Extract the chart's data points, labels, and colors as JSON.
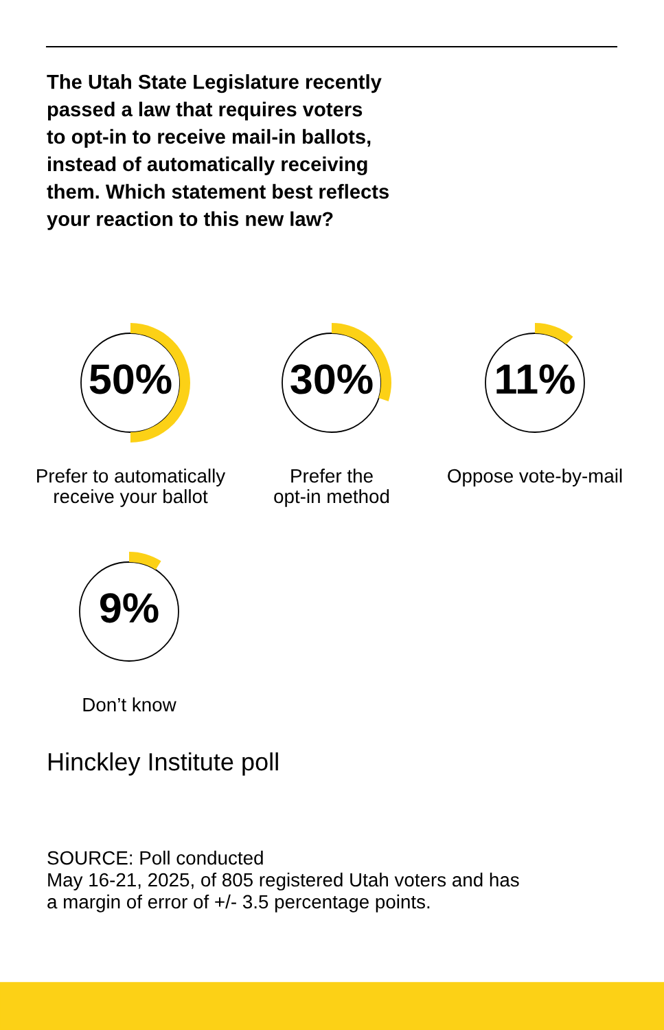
{
  "chart_data": [
    {
      "type": "other",
      "title": "The Utah State Legislature recently\npassed a law that requires voters\nto opt-in to receive mail-in ballots,\ninstead of automatically receiving\nthem. Which statement best reflects\nyour reaction to this new law?"
    },
    {
      "type": "pie",
      "title": "Prefer to automatically\nreceive your ballot",
      "categories": [
        null
      ],
      "values": [
        50
      ],
      "colors": [
        "#fcd116"
      ],
      "value_labels": [
        "50%"
      ]
    },
    {
      "type": "pie",
      "title": "Prefer the\nopt-in method",
      "categories": [
        null
      ],
      "values": [
        30
      ],
      "colors": [
        "#fcd116"
      ],
      "value_labels": [
        "30%"
      ]
    },
    {
      "type": "pie",
      "title": "Oppose vote-by-mail",
      "categories": [
        null
      ],
      "values": [
        11
      ],
      "colors": [
        "#fcd116"
      ],
      "value_labels": [
        "11%"
      ]
    },
    {
      "type": "pie",
      "title": "Don’t know",
      "categories": [
        null
      ],
      "values": [
        9
      ],
      "colors": [
        "#fcd116"
      ],
      "value_labels": [
        "9%"
      ]
    },
    {
      "type": "other",
      "annotations": [
        "Hinckley Institute poll",
        "SOURCE: Poll conducted\nMay 16-21, 2025, of 805 registered Utah voters and has\na margin of error of +/- 3.5 percentage points."
      ]
    }
  ]
}
